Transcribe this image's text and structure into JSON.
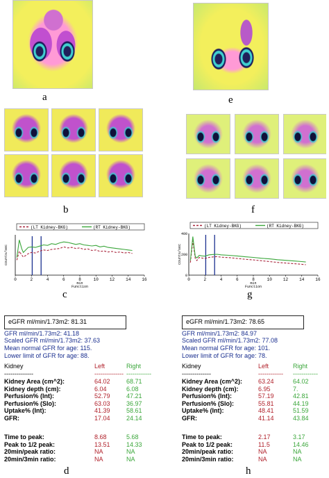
{
  "panels": {
    "a": "a",
    "b": "b",
    "c": "c",
    "d": "d",
    "e": "e",
    "f": "f",
    "g": "g",
    "h": "h"
  },
  "colors": {
    "left_kidney": "#a8243a",
    "right_kidney": "#3aa63a",
    "marker": "#1a2f8f",
    "scan_yellow": "#f2ee5a",
    "scan_green": "#b7e06a",
    "scan_magenta": "#c858c8",
    "scan_cyan": "#40d0d0"
  },
  "chart_data": [
    {
      "type": "line",
      "panel": "c",
      "legend": [
        "(LT Kidney-BKG)",
        "(RT Kidney-BKG)"
      ],
      "ylabel": "counts/sec",
      "xlabel_top": "min",
      "xlabel_bottom": "Function",
      "xlim": [
        0,
        16
      ],
      "ylim": [
        0,
        160
      ],
      "x_ticks": [
        "0",
        "2",
        "4",
        "6",
        "8",
        "10",
        "12",
        "14",
        "16"
      ],
      "markers_x": [
        2.1,
        3.2
      ],
      "series": [
        {
          "name": "(LT Kidney-BKG)",
          "style": "dashed",
          "x": [
            0.2,
            0.5,
            0.8,
            1.0,
            1.3,
            1.6,
            2.0,
            2.5,
            3.0,
            3.5,
            4.0,
            4.5,
            5.0,
            5.5,
            6.0,
            6.5,
            7.0,
            7.5,
            8.0,
            8.5,
            9.0,
            9.5,
            10.0,
            10.5,
            11.0,
            11.5,
            12.0,
            12.5,
            13.0,
            13.5,
            14.0,
            14.5
          ],
          "y": [
            60,
            95,
            80,
            72,
            78,
            85,
            90,
            88,
            95,
            100,
            98,
            102,
            104,
            106,
            112,
            108,
            110,
            106,
            108,
            102,
            104,
            98,
            100,
            94,
            96,
            92,
            94,
            90,
            92,
            88,
            90,
            86
          ]
        },
        {
          "name": "(RT Kidney-BKG)",
          "style": "solid",
          "x": [
            0.2,
            0.5,
            0.8,
            1.0,
            1.3,
            1.6,
            2.0,
            2.5,
            3.0,
            3.5,
            4.0,
            4.5,
            5.0,
            5.5,
            6.0,
            6.5,
            7.0,
            7.5,
            8.0,
            8.5,
            9.0,
            9.5,
            10.0,
            10.5,
            11.0,
            11.5,
            12.0,
            12.5,
            13.0,
            13.5,
            14.0,
            14.5
          ],
          "y": [
            70,
            140,
            105,
            90,
            100,
            110,
            112,
            110,
            115,
            120,
            118,
            125,
            122,
            128,
            132,
            130,
            126,
            122,
            125,
            120,
            118,
            116,
            118,
            112,
            115,
            110,
            108,
            106,
            104,
            102,
            100,
            98
          ]
        }
      ]
    },
    {
      "type": "line",
      "panel": "g",
      "legend": [
        "(LT Kidney-BKG)",
        "(RT Kidney-BKG)"
      ],
      "ylabel": "counts/sec",
      "xlabel_top": "min",
      "xlabel_bottom": "Function",
      "xlim": [
        0,
        16
      ],
      "ylim": [
        0,
        400
      ],
      "y_ticks": [
        "0",
        "200",
        "400"
      ],
      "x_ticks": [
        "0",
        "2",
        "4",
        "6",
        "8",
        "10",
        "12",
        "14",
        "16"
      ],
      "markers_x": [
        2.1,
        3.2
      ],
      "series": [
        {
          "name": "(LT Kidney-BKG)",
          "style": "dashed",
          "x": [
            0.2,
            0.5,
            0.8,
            1.0,
            1.3,
            1.6,
            2.0,
            2.5,
            3.0,
            3.5,
            4.0,
            5.0,
            6.0,
            7.0,
            8.0,
            9.0,
            10.0,
            11.0,
            12.0,
            13.0,
            14.0,
            14.5
          ],
          "y": [
            120,
            330,
            160,
            140,
            170,
            165,
            160,
            170,
            175,
            178,
            172,
            168,
            160,
            152,
            146,
            138,
            130,
            122,
            116,
            110,
            104,
            100
          ]
        },
        {
          "name": "(RT Kidney-BKG)",
          "style": "solid",
          "x": [
            0.2,
            0.5,
            0.8,
            1.0,
            1.3,
            1.6,
            2.0,
            2.5,
            3.0,
            3.5,
            4.0,
            5.0,
            6.0,
            7.0,
            8.0,
            9.0,
            10.0,
            11.0,
            12.0,
            13.0,
            14.0,
            14.5
          ],
          "y": [
            140,
            370,
            180,
            165,
            190,
            185,
            182,
            195,
            198,
            200,
            195,
            190,
            184,
            176,
            170,
            162,
            156,
            148,
            142,
            136,
            130,
            126
          ]
        }
      ]
    }
  ],
  "report_d": {
    "egfr": "eGFR ml/min/1.73m2:  81.31",
    "gfr": "GFR ml/min/1.73m2: 41.18",
    "scaled": "Scaled GFR ml/min/1.73m2: 37.63",
    "mean_normal": "Mean normal GFR for age: 115.",
    "lower_limit": "Lower limit of GFR for age: 88.",
    "header": {
      "kidney": "Kidney",
      "left": "Left",
      "right": "Right"
    },
    "dash_kidney": "--------------",
    "dash_left": "--------------",
    "dash_right": "------------",
    "rows": [
      {
        "label": "Kidney Area (cm^2):",
        "left": "64.02",
        "right": "68.71"
      },
      {
        "label": "Kidney depth (cm):",
        "left": "6.04",
        "right": "6.08"
      },
      {
        "label": "Perfusion% (Int):",
        "left": "52.79",
        "right": "47.21"
      },
      {
        "label": "Perfusion% (Slo):",
        "left": "63.03",
        "right": "36.97"
      },
      {
        "label": "Uptake% (Int):",
        "left": "41.39",
        "right": "58.61"
      },
      {
        "label": "GFR:",
        "left": "17.04",
        "right": "24.14"
      }
    ],
    "rows2": [
      {
        "label": "Time to peak:",
        "left": "8.68",
        "right": "5.68"
      },
      {
        "label": "Peak to 1/2 peak:",
        "left": "13.51",
        "right": "14.33"
      },
      {
        "label": "20min/peak ratio:",
        "left": "NA",
        "right": "NA"
      },
      {
        "label": "20min/3min ratio:",
        "left": "NA",
        "right": "NA"
      }
    ]
  },
  "report_h": {
    "egfr": "eGFR ml/min/1.73m2:  78.65",
    "gfr": "GFR ml/min/1.73m2: 84.97",
    "scaled": "Scaled GFR ml/min/1.73m2: 77.08",
    "mean_normal": "Mean normal GFR for age: 101.",
    "lower_limit": "Lower limit of GFR for age: 78.",
    "header": {
      "kidney": "Kidney",
      "left": "Left",
      "right": "Right"
    },
    "dash_kidney": "--------------",
    "dash_left": "------------",
    "dash_right": "------------",
    "rows": [
      {
        "label": "Kidney Area (cm^2):",
        "left": "63.24",
        "right": "64.02"
      },
      {
        "label": "Kidney depth (cm):",
        "left": "6.95",
        "right": "7."
      },
      {
        "label": "Perfusion% (Int):",
        "left": "57.19",
        "right": "42.81"
      },
      {
        "label": "Perfusion% (Slo):",
        "left": "55.81",
        "right": "44.19"
      },
      {
        "label": "Uptake% (Int):",
        "left": "48.41",
        "right": "51.59"
      },
      {
        "label": "GFR:",
        "left": "41.14",
        "right": "43.84"
      }
    ],
    "rows2": [
      {
        "label": "Time to peak:",
        "left": "2.17",
        "right": "3.17"
      },
      {
        "label": "Peak to 1/2 peak:",
        "left": "11.5",
        "right": "14.46"
      },
      {
        "label": "20min/peak ratio:",
        "left": "NA",
        "right": "NA"
      },
      {
        "label": "20min/3min ratio:",
        "left": "NA",
        "right": "NA"
      }
    ]
  }
}
